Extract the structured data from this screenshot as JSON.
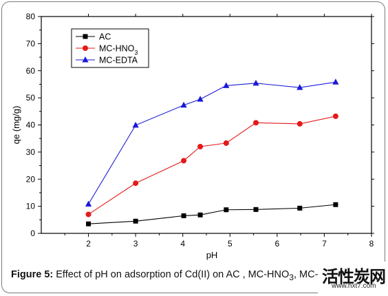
{
  "chart_data": {
    "type": "line",
    "xlabel": "pH",
    "ylabel": "qe (mg/g)",
    "xlim": [
      1,
      8
    ],
    "ylim": [
      0,
      80
    ],
    "xticks": [
      2,
      3,
      4,
      5,
      6,
      7,
      8
    ],
    "yticks": [
      0,
      10,
      20,
      30,
      40,
      50,
      60,
      70,
      80
    ],
    "grid": false,
    "legend_position": "top-left",
    "series": [
      {
        "name": "AC",
        "color": "#000000",
        "marker": "square",
        "x": [
          2.0,
          3.0,
          4.02,
          4.37,
          4.92,
          5.55,
          6.48,
          7.24
        ],
        "y": [
          3.5,
          4.5,
          6.5,
          6.8,
          8.7,
          8.8,
          9.3,
          10.6
        ]
      },
      {
        "name": "MC-HNO3",
        "color": "#e41a1a",
        "marker": "circle",
        "x": [
          2.0,
          3.0,
          4.02,
          4.37,
          4.92,
          5.55,
          6.48,
          7.24
        ],
        "y": [
          7.0,
          18.5,
          26.8,
          32.0,
          33.3,
          40.8,
          40.4,
          43.2
        ]
      },
      {
        "name": "MC-EDTA",
        "color": "#1a1ad6",
        "marker": "triangle",
        "x": [
          2.0,
          3.0,
          4.02,
          4.37,
          4.92,
          5.55,
          6.48,
          7.24
        ],
        "y": [
          10.8,
          39.9,
          47.3,
          49.5,
          54.5,
          55.4,
          53.8,
          55.8
        ]
      }
    ]
  },
  "caption": {
    "label": "Figure 5:",
    "text": " Effect of pH on adsorption of Cd(II) on AC , MC-HNO",
    "sub": "3",
    "text_after": ", MC-EDTA"
  },
  "watermark": {
    "text": "活性炭网",
    "url": "www.hxt7.com"
  }
}
